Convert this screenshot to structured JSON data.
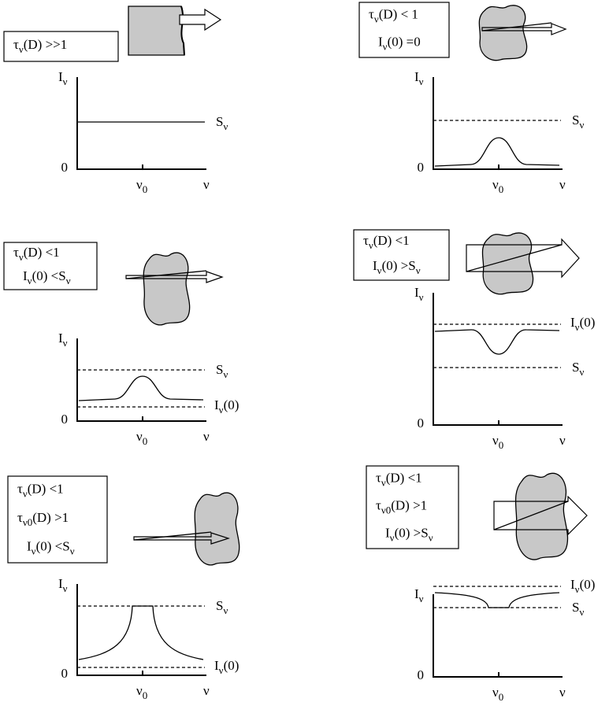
{
  "panels": [
    {
      "conditions": [
        [
          "τ",
          "ν",
          "(D) >>1"
        ]
      ],
      "labels": {
        "y": [
          "I",
          "ν"
        ],
        "zero": [
          "0"
        ],
        "nu0": [
          "ν",
          "0"
        ],
        "nu": [
          "ν"
        ],
        "s": [
          "S",
          "ν"
        ]
      }
    },
    {
      "conditions": [
        [
          "τ",
          "ν",
          "(D) < 1"
        ],
        [
          "I",
          "ν",
          "(0) =0"
        ]
      ],
      "labels": {
        "y": [
          "I",
          "ν"
        ],
        "zero": [
          "0"
        ],
        "nu0": [
          "ν",
          "0"
        ],
        "nu": [
          "ν"
        ],
        "s": [
          "S",
          "ν"
        ]
      }
    },
    {
      "conditions": [
        [
          "τ",
          "ν",
          "(D) <1"
        ],
        [
          "I",
          "ν",
          "(0) <S",
          "ν"
        ]
      ],
      "labels": {
        "y": [
          "I",
          "ν"
        ],
        "zero": [
          "0"
        ],
        "nu0": [
          "ν",
          "0"
        ],
        "nu": [
          "ν"
        ],
        "s": [
          "S",
          "ν"
        ],
        "i0": [
          "I",
          "ν",
          "(0)"
        ]
      }
    },
    {
      "conditions": [
        [
          "τ",
          "ν",
          "(D) <1"
        ],
        [
          "I",
          "ν",
          "(0) >S",
          "ν"
        ]
      ],
      "labels": {
        "y": [
          "I",
          "ν"
        ],
        "zero": [
          "0"
        ],
        "nu0": [
          "ν",
          "0"
        ],
        "nu": [
          "ν"
        ],
        "s": [
          "S",
          "ν"
        ],
        "i0": [
          "I",
          "ν",
          "(0)"
        ]
      }
    },
    {
      "conditions": [
        [
          "τ",
          "ν",
          "(D) <1"
        ],
        [
          "τ",
          "ν0",
          "(D) >1"
        ],
        [
          "I",
          "ν",
          "(0) <S",
          "ν"
        ]
      ],
      "labels": {
        "y": [
          "I",
          "ν"
        ],
        "zero": [
          "0"
        ],
        "nu0": [
          "ν",
          "0"
        ],
        "nu": [
          "ν"
        ],
        "s": [
          "S",
          "ν"
        ],
        "i0": [
          "I",
          "ν",
          "(0)"
        ]
      }
    },
    {
      "conditions": [
        [
          "τ",
          "ν",
          "(D) <1"
        ],
        [
          "τ",
          "ν0",
          "(D) >1"
        ],
        [
          "I",
          "ν",
          "(0) >S",
          "ν"
        ]
      ],
      "labels": {
        "y": [
          "I",
          "ν"
        ],
        "zero": [
          "0"
        ],
        "nu0": [
          "ν",
          "0"
        ],
        "nu": [
          "ν"
        ],
        "s": [
          "S",
          "ν"
        ],
        "i0": [
          "I",
          "ν",
          "(0)"
        ]
      }
    }
  ]
}
